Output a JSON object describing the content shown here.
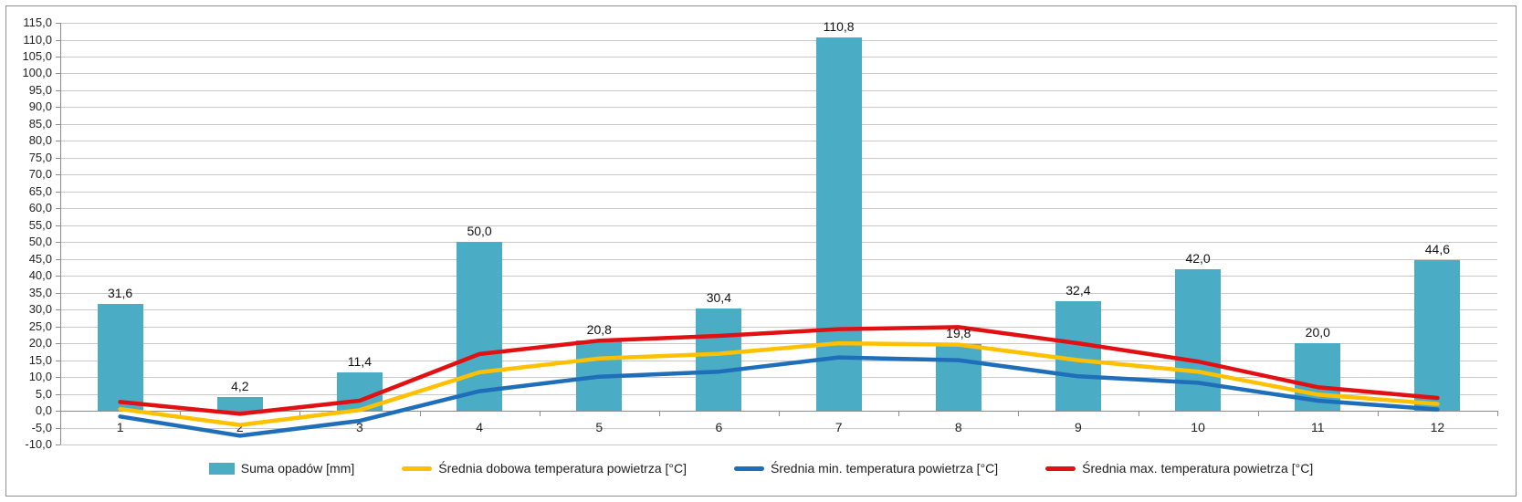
{
  "chart_data": {
    "type": "combo-bar-line",
    "title": "",
    "categories": [
      "1",
      "2",
      "3",
      "4",
      "5",
      "6",
      "7",
      "8",
      "9",
      "10",
      "11",
      "12"
    ],
    "series": [
      {
        "name": "Suma opadów [mm]",
        "type": "bar",
        "color": "#4BACC6",
        "values": [
          31.6,
          4.2,
          11.4,
          50.0,
          20.8,
          30.4,
          110.8,
          19.8,
          32.4,
          42.0,
          20.0,
          44.6
        ],
        "data_labels": [
          "31,6",
          "4,2",
          "11,4",
          "50,0",
          "20,8",
          "30,4",
          "110,8",
          "19,8",
          "32,4",
          "42,0",
          "20,0",
          "44,6"
        ]
      },
      {
        "name": "Średnia dobowa temperatura powietrza [°C]",
        "type": "line",
        "color": "#FFC000",
        "values": [
          0.5,
          -4.2,
          0.2,
          11.4,
          15.5,
          16.9,
          20.0,
          19.6,
          15.0,
          11.6,
          4.8,
          2.0
        ]
      },
      {
        "name": "Średnia min. temperatura powietrza [°C]",
        "type": "line",
        "color": "#1E6EB9",
        "values": [
          -1.7,
          -7.4,
          -3.0,
          5.8,
          10.1,
          11.6,
          15.8,
          15.0,
          10.2,
          8.3,
          3.0,
          0.4
        ]
      },
      {
        "name": "Średnia max. temperatura powietrza [°C]",
        "type": "line",
        "color": "#E01013",
        "values": [
          2.6,
          -0.9,
          3.0,
          16.8,
          20.8,
          22.2,
          24.2,
          24.8,
          20.0,
          14.6,
          7.0,
          3.8
        ]
      }
    ],
    "y_axis": {
      "min": -10.0,
      "max": 115.0,
      "step": 5.0,
      "decimal_separator": ",",
      "tick_labels": [
        "115,0",
        "110,0",
        "105,0",
        "100,0",
        "95,0",
        "90,0",
        "85,0",
        "80,0",
        "75,0",
        "70,0",
        "65,0",
        "60,0",
        "55,0",
        "50,0",
        "45,0",
        "40,0",
        "35,0",
        "30,0",
        "25,0",
        "20,0",
        "15,0",
        "10,0",
        "5,0",
        "0,0",
        "-5,0",
        "-10,0"
      ]
    },
    "x_axis": {
      "label": "",
      "tick_labels": [
        "1",
        "2",
        "3",
        "4",
        "5",
        "6",
        "7",
        "8",
        "9",
        "10",
        "11",
        "12"
      ]
    },
    "grid": true,
    "legend_position": "bottom",
    "colors": {
      "gridline": "#c8c8c8",
      "axis": "#8c8c8c",
      "frame_border": "#8f8f8f",
      "label_text": "#1f1f1f"
    }
  }
}
